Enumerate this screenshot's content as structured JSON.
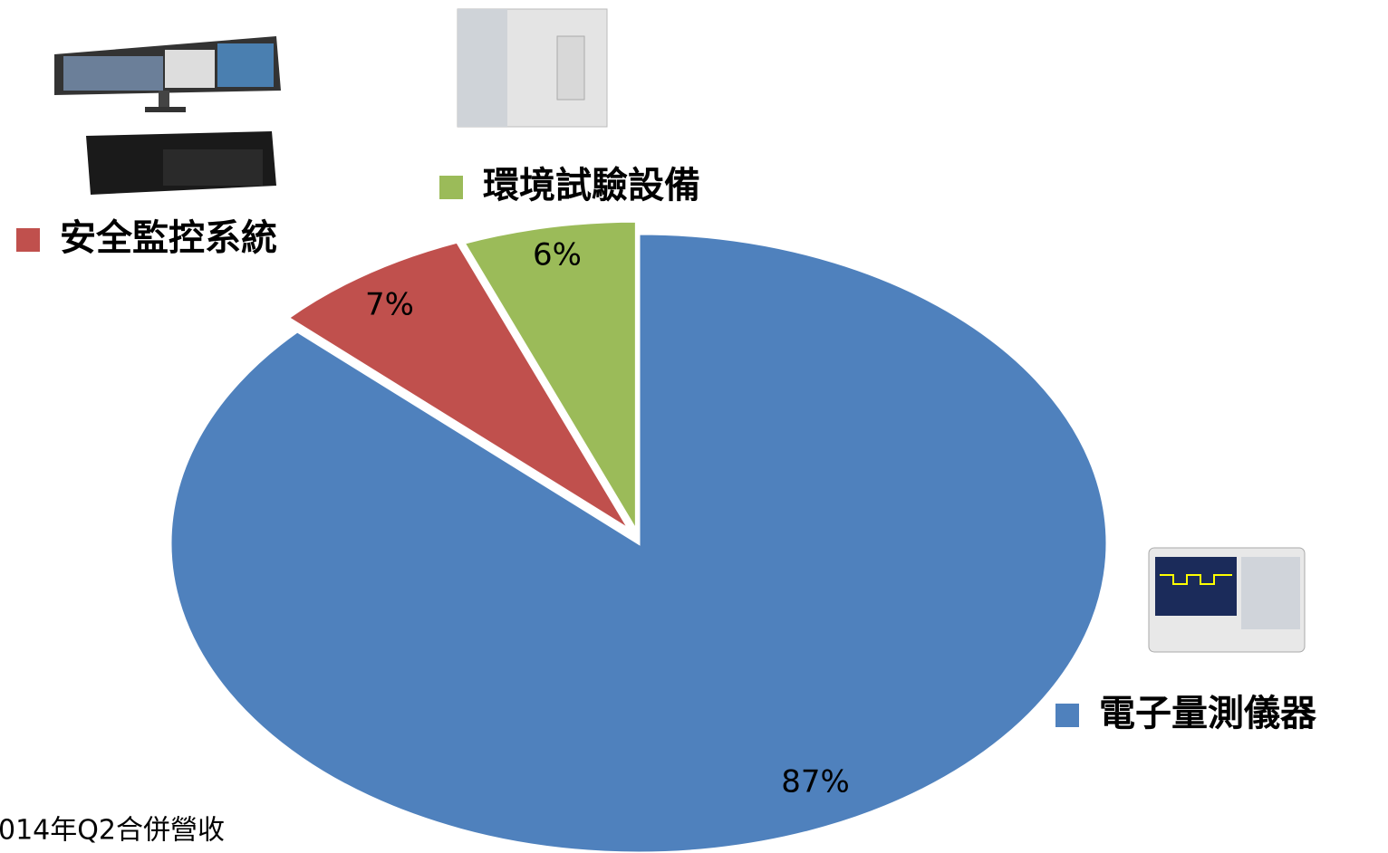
{
  "chart_data": {
    "type": "pie",
    "caption": "014年Q2合併營收",
    "categories": [
      "電子量測儀器",
      "安全監控系統",
      "環境試驗設備"
    ],
    "values": [
      87,
      7,
      6
    ],
    "value_labels": [
      "87%",
      "7%",
      "6%"
    ],
    "colors": [
      "#4f81bd",
      "#c0504d",
      "#9bbb59"
    ]
  }
}
